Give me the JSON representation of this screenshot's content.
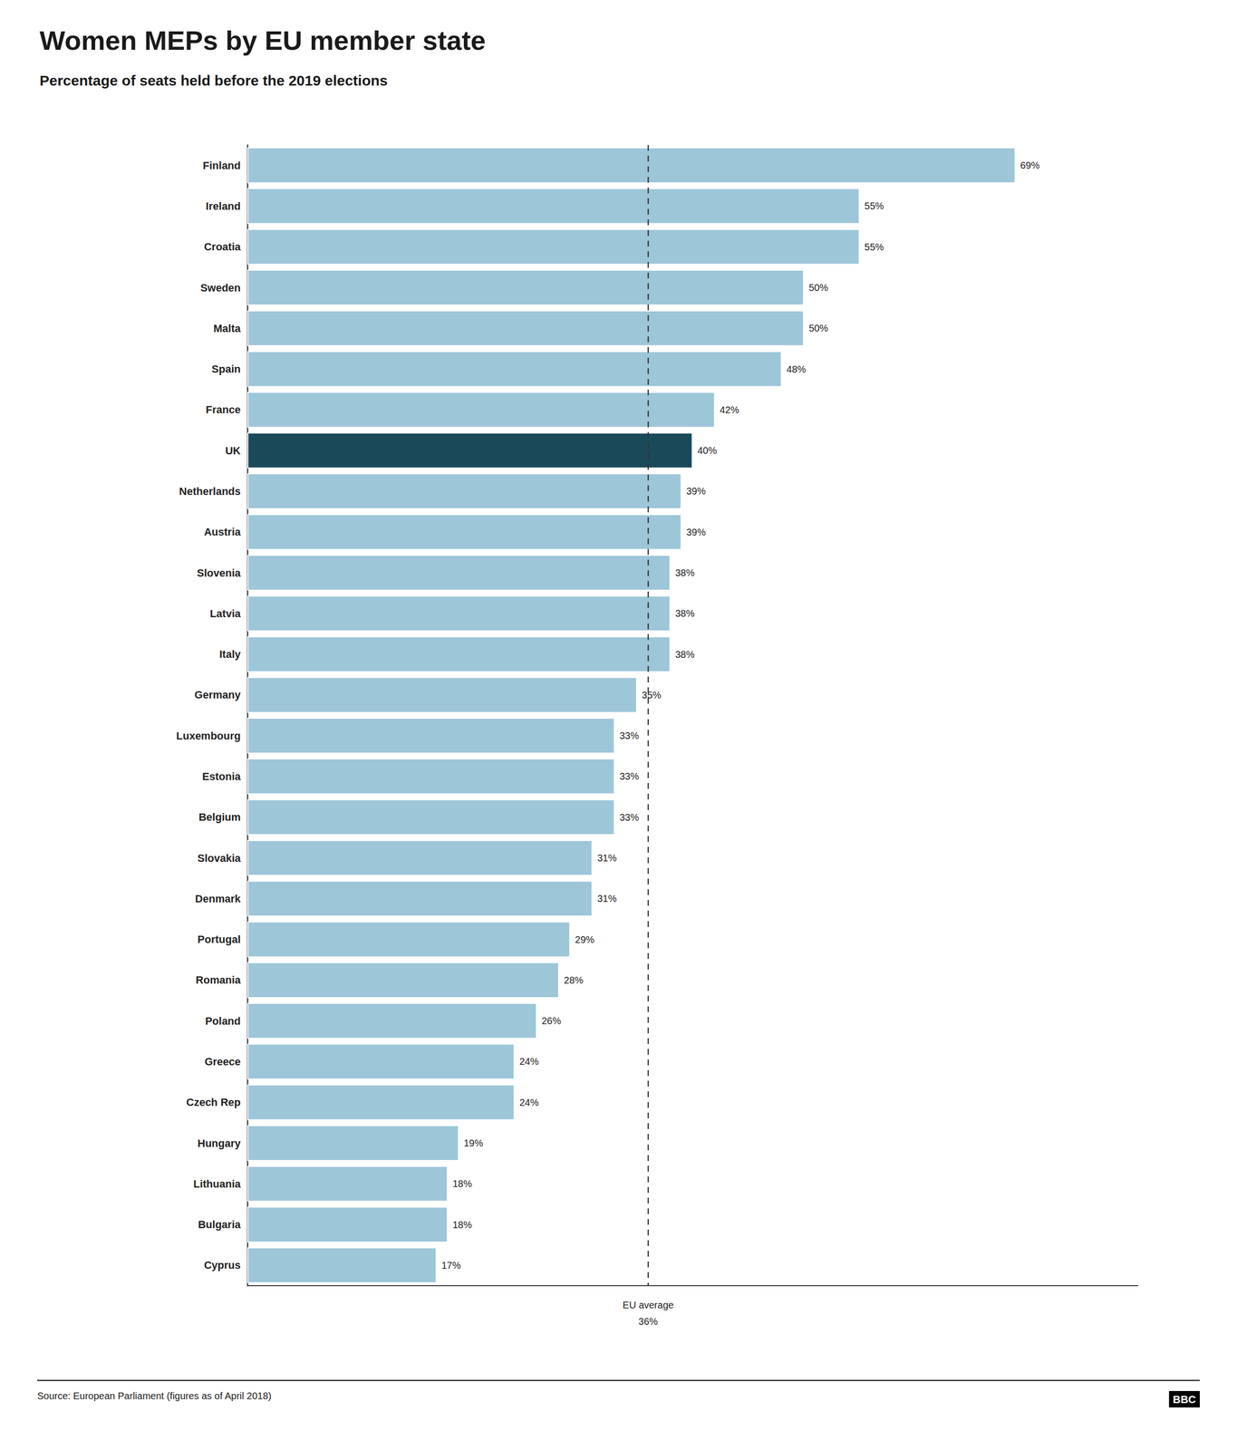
{
  "chart_data": {
    "type": "bar",
    "orientation": "horizontal",
    "title": "Women MEPs by EU member state",
    "subtitle": "Percentage of seats held before the 2019 elections",
    "source": "Source: European Parliament (figures as of April 2018)",
    "logo": "BBC",
    "categories": [
      "Finland",
      "Ireland",
      "Croatia",
      "Sweden",
      "Malta",
      "Spain",
      "France",
      "UK",
      "Netherlands",
      "Austria",
      "Slovenia",
      "Latvia",
      "Italy",
      "Germany",
      "Luxembourg",
      "Estonia",
      "Belgium",
      "Slovakia",
      "Denmark",
      "Portugal",
      "Romania",
      "Poland",
      "Greece",
      "Czech Rep",
      "Hungary",
      "Lithuania",
      "Bulgaria",
      "Cyprus"
    ],
    "values": [
      69,
      55,
      55,
      50,
      50,
      48,
      42,
      40,
      39,
      39,
      38,
      38,
      38,
      35,
      33,
      33,
      33,
      31,
      31,
      29,
      28,
      26,
      24,
      24,
      19,
      18,
      18,
      17
    ],
    "value_labels": [
      "69%",
      "55%",
      "55%",
      "50%",
      "50%",
      "48%",
      "42%",
      "40%",
      "39%",
      "39%",
      "38%",
      "38%",
      "38%",
      "35%",
      "33%",
      "33%",
      "33%",
      "31%",
      "31%",
      "29%",
      "28%",
      "26%",
      "24%",
      "24%",
      "19%",
      "18%",
      "18%",
      "17%"
    ],
    "colors": [
      "#9dc6d8",
      "#9dc6d8",
      "#9dc6d8",
      "#9dc6d8",
      "#9dc6d8",
      "#9dc6d8",
      "#9dc6d8",
      "#1a4a5a",
      "#9dc6d8",
      "#9dc6d8",
      "#9dc6d8",
      "#9dc6d8",
      "#9dc6d8",
      "#9dc6d8",
      "#9dc6d8",
      "#9dc6d8",
      "#9dc6d8",
      "#9dc6d8",
      "#9dc6d8",
      "#9dc6d8",
      "#9dc6d8",
      "#9dc6d8",
      "#9dc6d8",
      "#9dc6d8",
      "#9dc6d8",
      "#9dc6d8",
      "#9dc6d8",
      "#9dc6d8"
    ],
    "data_labels": true,
    "xlim": [
      0,
      80
    ],
    "xticks": [],
    "tick_labels": "y",
    "grid": false,
    "annotations": [
      {
        "value": 36,
        "lines": [
          "EU average",
          "36%"
        ]
      }
    ]
  }
}
